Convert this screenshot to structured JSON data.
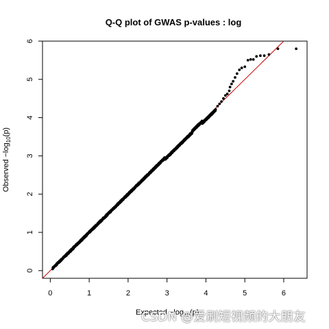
{
  "chart_data": {
    "type": "scatter",
    "title": "Q-Q plot of GWAS p-values : log",
    "xlabel": "Expected −log",
    "xlabel_sub": "10",
    "xlabel_tail": "(p)",
    "ylabel": "Observed −log",
    "ylabel_sub": "10",
    "ylabel_tail": "(p)",
    "xlim": [
      -0.2,
      6.6
    ],
    "ylim": [
      -0.2,
      6.0
    ],
    "x_ticks": [
      0,
      1,
      2,
      3,
      4,
      5,
      6
    ],
    "y_ticks": [
      0,
      1,
      2,
      3,
      4,
      5,
      6
    ],
    "reference_line": {
      "slope": 1,
      "intercept": 0,
      "color": "#cc0000"
    },
    "point_color": "#000000",
    "tail_points": {
      "x": [
        4.3,
        4.35,
        4.4,
        4.45,
        4.5,
        4.55,
        4.6,
        4.62,
        4.66,
        4.7,
        4.75,
        4.8,
        4.86,
        4.92,
        5.0,
        5.08,
        5.15,
        5.22,
        5.3,
        5.4,
        5.5,
        5.62,
        5.85,
        6.32
      ],
      "y": [
        4.3,
        4.36,
        4.42,
        4.5,
        4.58,
        4.62,
        4.7,
        4.8,
        4.88,
        4.95,
        5.05,
        5.15,
        5.25,
        5.3,
        5.33,
        5.5,
        5.52,
        5.52,
        5.6,
        5.62,
        5.62,
        5.65,
        5.8,
        5.8
      ]
    },
    "grid": false,
    "legend": "none"
  },
  "watermark": "CSDN @爱刷短视频的大朋友"
}
